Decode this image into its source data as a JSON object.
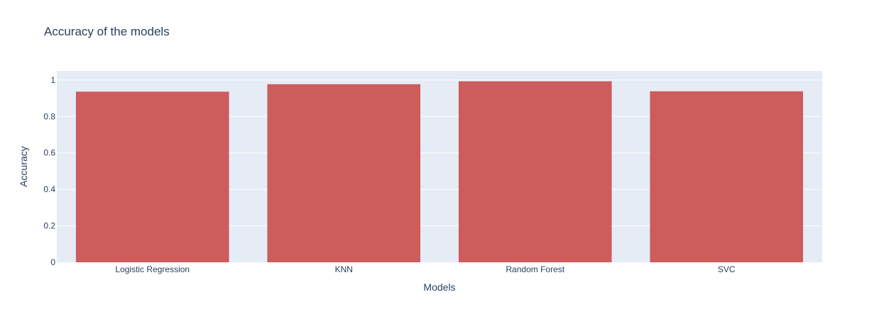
{
  "colors": {
    "plot_background": "#e5ecf6",
    "grid": "#ffffff",
    "bar": "#cd5c5c",
    "text": "#2a3f5f"
  },
  "chart_data": {
    "type": "bar",
    "title": "Accuracy of the models",
    "xlabel": "Models",
    "ylabel": "Accuracy",
    "categories": [
      "Logistic Regression",
      "KNN",
      "Random Forest",
      "SVC"
    ],
    "values": [
      0.936,
      0.977,
      0.993,
      0.938
    ],
    "ylim": [
      0,
      1.05
    ],
    "yticks": [
      0,
      0.2,
      0.4,
      0.6,
      0.8,
      1
    ],
    "ytick_labels": [
      "0",
      "0.2",
      "0.4",
      "0.6",
      "0.8",
      "1"
    ],
    "grid": true,
    "legend": false
  }
}
